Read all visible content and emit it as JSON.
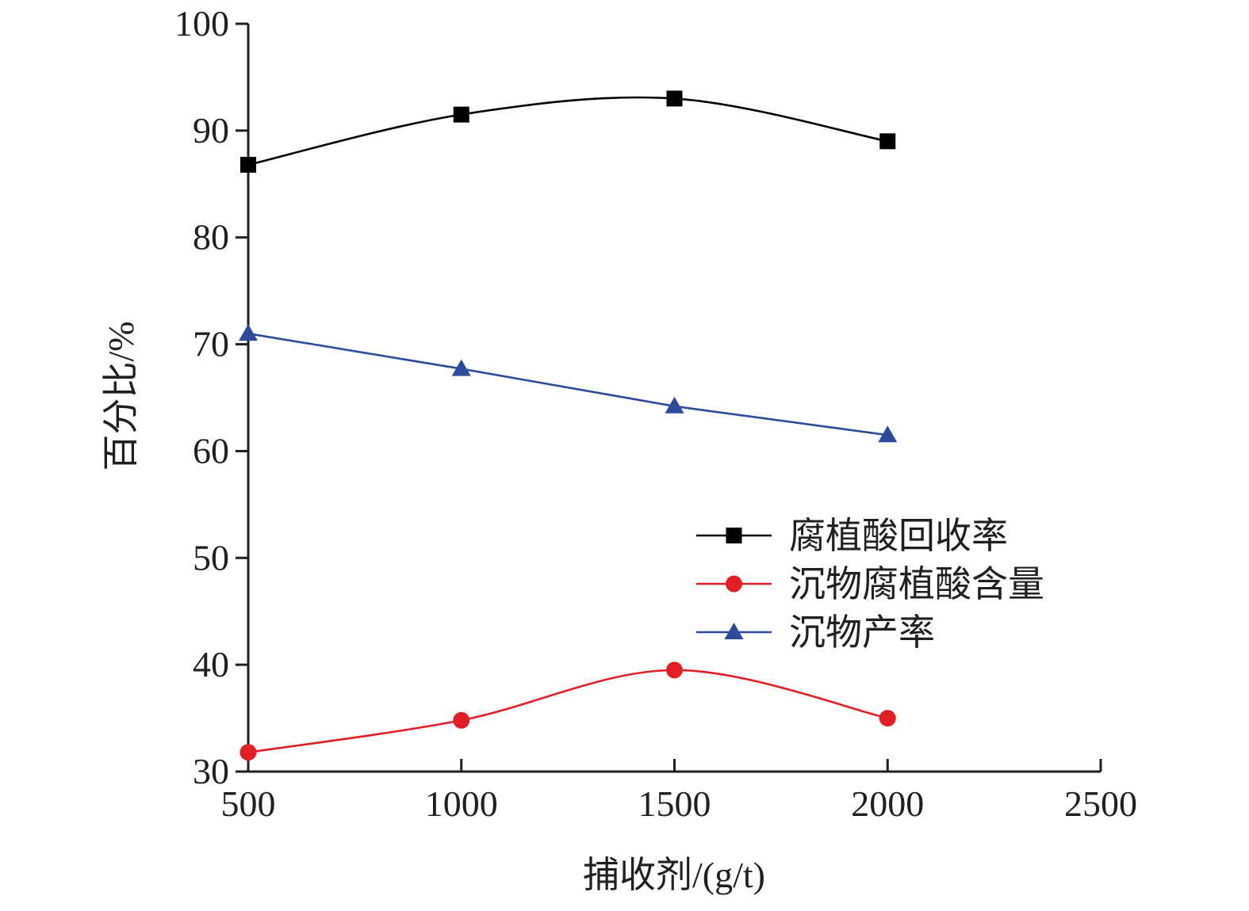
{
  "chart_data": {
    "type": "line",
    "xlabel": "捕收剂/(g/t)",
    "ylabel": "百分比/%",
    "xlim": [
      500,
      2500
    ],
    "ylim": [
      30,
      100
    ],
    "xticks": [
      500,
      1000,
      1500,
      2000,
      2500
    ],
    "yticks": [
      30,
      40,
      50,
      60,
      70,
      80,
      90,
      100
    ],
    "grid": false,
    "legend_position": "center-right",
    "x": [
      500,
      1000,
      1500,
      2000
    ],
    "series": [
      {
        "name": "腐植酸回收率",
        "values": [
          86.8,
          91.5,
          93.0,
          89.0
        ],
        "color": "#000000",
        "marker": "square"
      },
      {
        "name": "沉物腐植酸含量",
        "values": [
          31.8,
          34.8,
          39.5,
          35.0
        ],
        "color": "#e31e24",
        "marker": "circle"
      },
      {
        "name": "沉物产率",
        "values": [
          71.0,
          67.7,
          64.2,
          61.5
        ],
        "color": "#2e4b9b",
        "marker": "triangle"
      }
    ]
  }
}
